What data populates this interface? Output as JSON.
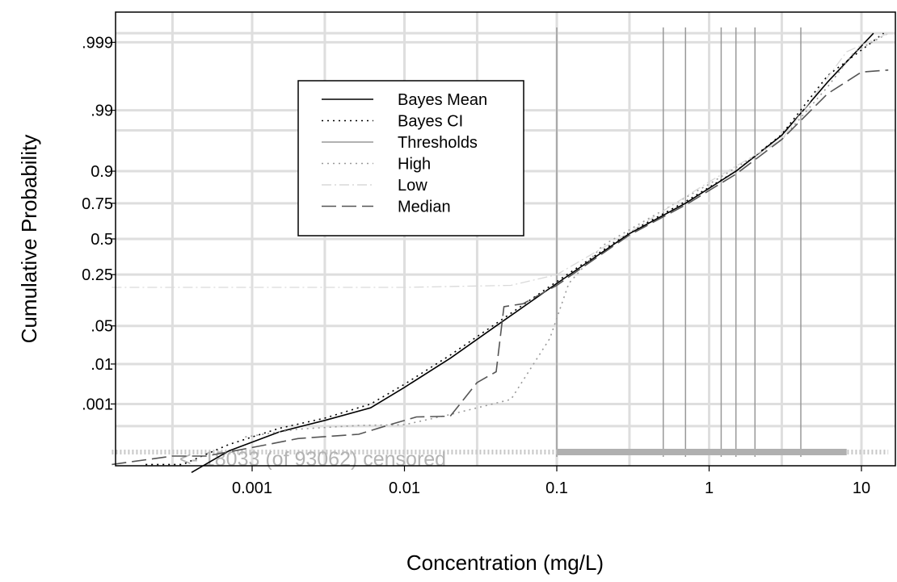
{
  "chart_data": {
    "type": "line",
    "xlabel": "Concentration (mg/L)",
    "ylabel": "Cumulative Probability",
    "x_scale": "log",
    "y_scale": "probability",
    "xlim": [
      0.00012,
      15
    ],
    "x_ticks": [
      {
        "value": 0.001,
        "label": "0.001"
      },
      {
        "value": 0.01,
        "label": "0.01"
      },
      {
        "value": 0.1,
        "label": "0.1"
      },
      {
        "value": 1,
        "label": "1"
      },
      {
        "value": 10,
        "label": "10"
      }
    ],
    "y_ticks": [
      {
        "value": 0.9999,
        "label": ".999"
      },
      {
        "value": 0.9925,
        "label": ".99"
      },
      {
        "value": 0.9,
        "label": "0.9"
      },
      {
        "value": 0.75,
        "label": "0.75"
      },
      {
        "value": 0.5,
        "label": "0.5"
      },
      {
        "value": 0.25,
        "label": "0.25"
      },
      {
        "value": 0.05,
        "label": ".05"
      },
      {
        "value": 0.009,
        "label": ".01"
      },
      {
        "value": 0.0009,
        "label": ".001"
      }
    ],
    "grid": true,
    "legend_position": "top-left",
    "thresholds": [
      0.1,
      0.5,
      0.7,
      1.2,
      1.5,
      2,
      4
    ],
    "series": [
      {
        "name": "Bayes Mean",
        "style": "solid",
        "color": "#000000",
        "x": [
          0.0004,
          0.0007,
          0.0015,
          0.003,
          0.006,
          0.01,
          0.02,
          0.04,
          0.1,
          0.3,
          0.7,
          1.5,
          3,
          6,
          12
        ],
        "y": [
          5e-06,
          3e-05,
          0.00013,
          0.0003,
          0.0007,
          0.0025,
          0.012,
          0.05,
          0.2,
          0.54,
          0.75,
          0.9,
          0.975,
          0.9985,
          0.99995
        ]
      },
      {
        "name": "Bayes CI",
        "style": "dotted",
        "color": "#000000",
        "x": [
          0.0002,
          0.00035,
          0.0007,
          0.0015,
          0.003,
          0.006,
          0.01,
          0.02,
          0.04,
          0.1,
          0.3,
          0.7,
          1.5,
          3,
          6,
          14
        ],
        "y": [
          1e-05,
          1e-05,
          5e-05,
          0.00017,
          0.00035,
          0.0009,
          0.003,
          0.014,
          0.055,
          0.21,
          0.55,
          0.76,
          0.9,
          0.976,
          0.999,
          0.99995
        ]
      },
      {
        "name": "High",
        "style": "dotted",
        "color": "#999999",
        "x": [
          0.0009,
          0.002,
          0.005,
          0.01,
          0.02,
          0.05,
          0.09,
          0.12,
          0.2,
          0.4,
          1,
          3,
          6,
          9,
          15
        ],
        "y": [
          9e-05,
          0.00016,
          0.00021,
          0.00022,
          0.00045,
          0.0012,
          0.03,
          0.2,
          0.45,
          0.65,
          0.85,
          0.97,
          0.998,
          0.9998,
          0.99995
        ]
      },
      {
        "name": "Low",
        "style": "dashdot",
        "color": "#d9d9d9",
        "x": [
          0.00012,
          0.001,
          0.01,
          0.05,
          0.1,
          0.3,
          1,
          3,
          8,
          15
        ],
        "y": [
          0.18,
          0.18,
          0.18,
          0.19,
          0.25,
          0.55,
          0.86,
          0.97,
          0.9998,
          0.99995
        ]
      },
      {
        "name": "Median",
        "style": "dashed",
        "color": "#555555",
        "x": [
          0.00012,
          0.0003,
          0.0005,
          0.001,
          0.002,
          0.005,
          0.008,
          0.012,
          0.02,
          0.03,
          0.04,
          0.045,
          0.06,
          0.1,
          0.15,
          0.3,
          0.7,
          1.5,
          3,
          6,
          10,
          15
        ],
        "y": [
          1e-05,
          2e-05,
          2e-05,
          4e-05,
          8e-05,
          0.00011,
          0.00022,
          0.00038,
          0.0004,
          0.0033,
          0.006,
          0.1,
          0.11,
          0.19,
          0.3,
          0.53,
          0.74,
          0.89,
          0.97,
          0.997,
          0.9992,
          0.9993
        ]
      }
    ],
    "legend": [
      {
        "label": "Bayes Mean",
        "style": "solid",
        "color": "#000000"
      },
      {
        "label": "Bayes CI",
        "style": "dotted",
        "color": "#000000"
      },
      {
        "label": "Thresholds",
        "style": "solid",
        "color": "#999999"
      },
      {
        "label": "High",
        "style": "dotted",
        "color": "#999999"
      },
      {
        "label": "Low",
        "style": "dashdot",
        "color": "#d9d9d9"
      },
      {
        "label": "Median",
        "style": "dashed",
        "color": "#555555"
      }
    ],
    "annotation": "<- 18033 (of 93062) censored",
    "censored_range": [
      0.00012,
      15
    ]
  }
}
